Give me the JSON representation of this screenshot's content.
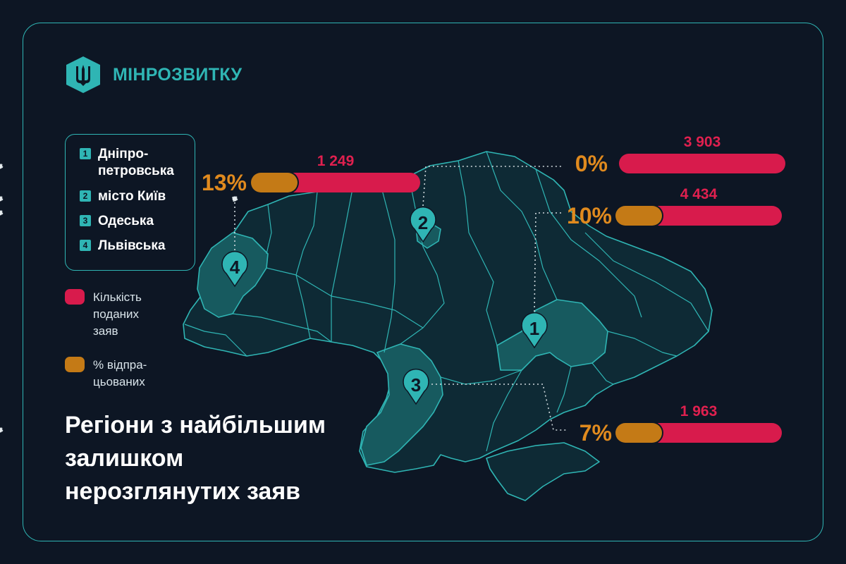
{
  "brand": {
    "name": "МІНРОЗВИТКУ",
    "accent": "#2fb5b4"
  },
  "legend": {
    "items": [
      {
        "num": "1",
        "label_line1": "Дніпро-",
        "label_line2": "петровська"
      },
      {
        "num": "2",
        "label": "місто Київ"
      },
      {
        "num": "3",
        "label": "Одеська"
      },
      {
        "num": "4",
        "label": "Львівська"
      }
    ]
  },
  "key": {
    "count": {
      "line1": "Кількість",
      "line2": "поданих",
      "line3": "заяв",
      "color": "#d81b4c"
    },
    "percent": {
      "line1": "% відпра-",
      "line2": "цьованих",
      "color": "#c47a16"
    }
  },
  "title": {
    "line1": "Регіони з найбільшим",
    "line2": "залишком",
    "line3": "нерозглянутих заяв"
  },
  "chart_data": {
    "type": "bar",
    "series": [
      {
        "name": "Кількість поданих заяв",
        "color": "#d81b4c"
      },
      {
        "name": "% відпрацьованих",
        "color": "#c47a16"
      }
    ],
    "regions": [
      {
        "num": "4",
        "name": "Львівська",
        "count": 1249,
        "count_label": "1 249",
        "percent": 13,
        "percent_label": "13%"
      },
      {
        "num": "2",
        "name": "місто Київ",
        "count": 3903,
        "count_label": "3 903",
        "percent": 0,
        "percent_label": "0%"
      },
      {
        "num": "1",
        "name": "Дніпропетровська",
        "count": 4434,
        "count_label": "4 434",
        "percent": 10,
        "percent_label": "10%"
      },
      {
        "num": "3",
        "name": "Одеська",
        "count": 1963,
        "count_label": "1 963",
        "percent": 7,
        "percent_label": "7%"
      }
    ]
  }
}
